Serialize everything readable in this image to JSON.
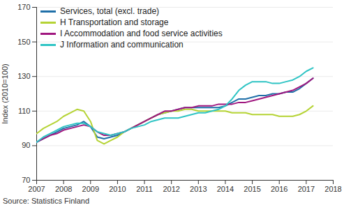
{
  "chart_data": {
    "type": "line",
    "y_label": "Index (2010=100)",
    "caption": "Source: Statistics Finland",
    "x": [
      2007,
      2007.25,
      2007.5,
      2007.75,
      2008,
      2008.25,
      2008.5,
      2008.75,
      2009,
      2009.25,
      2009.5,
      2009.75,
      2010,
      2010.25,
      2010.5,
      2010.75,
      2011,
      2011.25,
      2011.5,
      2011.75,
      2012,
      2012.25,
      2012.5,
      2012.75,
      2013,
      2013.25,
      2013.5,
      2013.75,
      2014,
      2014.25,
      2014.5,
      2014.75,
      2015,
      2015.25,
      2015.5,
      2015.75,
      2016,
      2016.25,
      2016.5,
      2016.75,
      2017,
      2017.25
    ],
    "series": [
      {
        "name": "Services, total (excl. trade)",
        "color": "#1f6fa8",
        "values": [
          92,
          94,
          96,
          98,
          100,
          101,
          102,
          104,
          101,
          95,
          94,
          95,
          96,
          98,
          100,
          102,
          104,
          106,
          108,
          109,
          110,
          111,
          112,
          112,
          112,
          112,
          112,
          112,
          113,
          115,
          117,
          117,
          118,
          119,
          119,
          120,
          120,
          121,
          121,
          123,
          126,
          129
        ]
      },
      {
        "name": "H Transportation and storage",
        "color": "#b5d334",
        "values": [
          97,
          100,
          102,
          104,
          107,
          109,
          111,
          110,
          104,
          93,
          91,
          93,
          95,
          98,
          100,
          102,
          104,
          106,
          108,
          109,
          110,
          110,
          111,
          111,
          110,
          110,
          110,
          110,
          110,
          109,
          109,
          109,
          108,
          108,
          108,
          108,
          107,
          107,
          107,
          108,
          110,
          113
        ]
      },
      {
        "name": "I Accommodation and food service activities",
        "color": "#a0177f",
        "values": [
          92,
          94,
          96,
          97,
          99,
          100,
          101,
          102,
          101,
          98,
          96,
          96,
          97,
          98,
          100,
          102,
          104,
          106,
          108,
          110,
          110,
          111,
          112,
          112,
          113,
          113,
          113,
          114,
          114,
          114,
          115,
          115,
          116,
          117,
          118,
          119,
          120,
          121,
          122,
          124,
          126,
          129
        ]
      },
      {
        "name": "J Information and communication",
        "color": "#2ec4c4",
        "values": [
          92,
          95,
          97,
          99,
          101,
          102,
          103,
          103,
          101,
          98,
          97,
          96,
          97,
          98,
          100,
          101,
          102,
          104,
          105,
          106,
          106,
          106,
          107,
          108,
          109,
          109,
          110,
          111,
          113,
          117,
          122,
          125,
          127,
          127,
          127,
          126,
          126,
          127,
          128,
          130,
          133,
          135
        ]
      }
    ],
    "xlim": [
      2007,
      2018
    ],
    "xticks": [
      2007,
      2008,
      2009,
      2010,
      2011,
      2012,
      2013,
      2014,
      2015,
      2016,
      2017,
      2018
    ],
    "ylim": [
      70,
      170
    ],
    "yticks": [
      70,
      90,
      110,
      130,
      150,
      170
    ],
    "grid": true,
    "legend": "top-left"
  }
}
